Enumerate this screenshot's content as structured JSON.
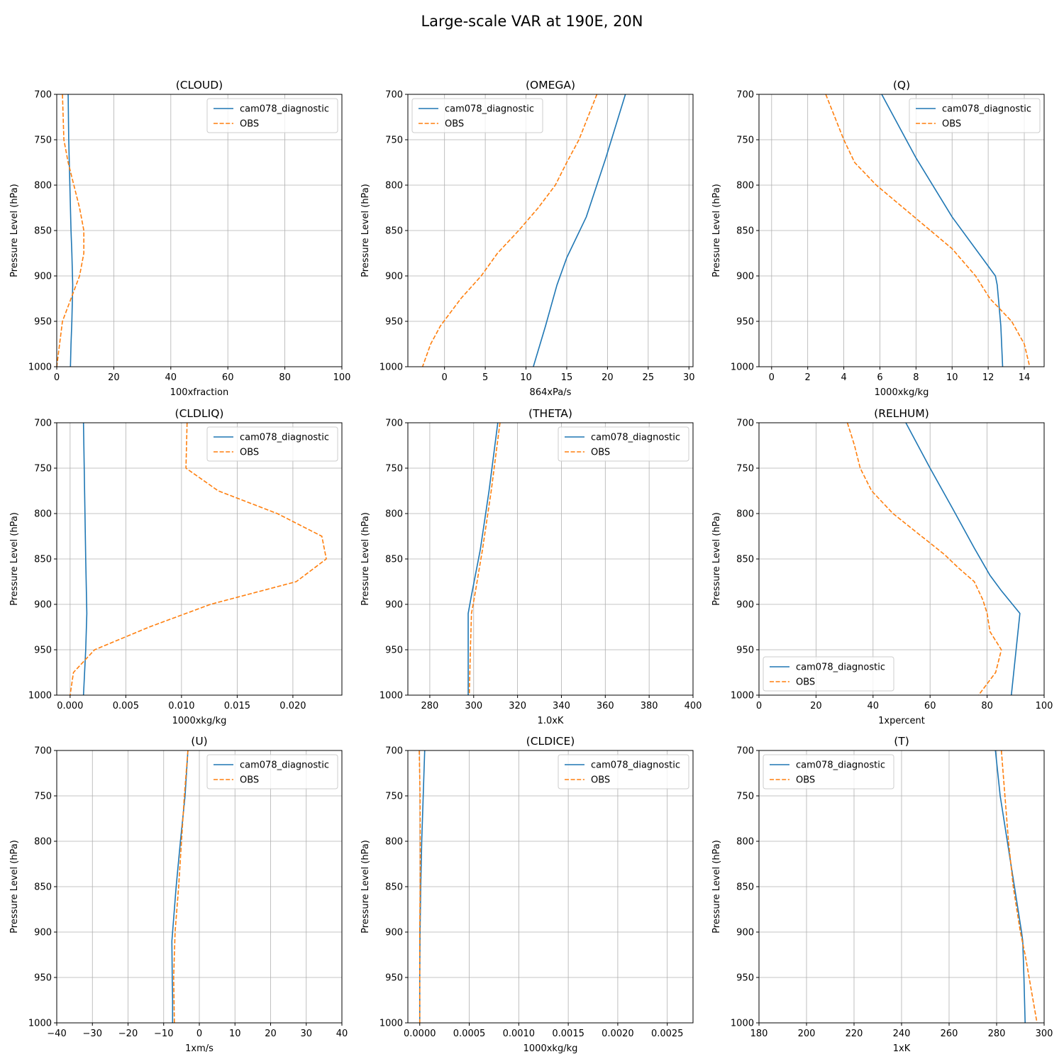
{
  "figure": {
    "title": "Large-scale VAR at 190E, 20N"
  },
  "colors": {
    "model": "#1f77b4",
    "obs": "#ff7f0e",
    "grid": "#b0b0b0"
  },
  "chart_data": [
    {
      "type": "line",
      "title": "(CLOUD)",
      "xlabel": "100xfraction",
      "ylabel": "Pressure Level (hPa)",
      "xlim": [
        0,
        100
      ],
      "ylim": [
        1000,
        700
      ],
      "xticks": [
        0,
        20,
        40,
        60,
        80,
        100
      ],
      "xtick_labels": [
        "0",
        "20",
        "40",
        "60",
        "80",
        "100"
      ],
      "yticks": [
        700,
        750,
        800,
        850,
        900,
        950,
        1000
      ],
      "ytick_labels": [
        "700",
        "750",
        "800",
        "850",
        "900",
        "950",
        "1000"
      ],
      "grid": true,
      "legend": "top-right",
      "series": [
        {
          "name": "cam078_diagnostic",
          "style": "solid",
          "x": [
            4,
            4.2,
            4.6,
            5,
            5.3,
            5.6,
            5.3,
            5,
            4.8
          ],
          "y": [
            700,
            750,
            800,
            850,
            875,
            910,
            950,
            975,
            1000
          ]
        },
        {
          "name": "OBS",
          "style": "dashed",
          "x": [
            2,
            2.5,
            4,
            8,
            9.5,
            9.5,
            8,
            5,
            2,
            1,
            0
          ],
          "y": [
            700,
            750,
            775,
            825,
            850,
            875,
            900,
            925,
            950,
            975,
            1000
          ]
        }
      ]
    },
    {
      "type": "line",
      "title": "(OMEGA)",
      "xlabel": "864xPa/s",
      "ylabel": "Pressure Level (hPa)",
      "xlim": [
        -4.5,
        30.5
      ],
      "ylim": [
        1000,
        700
      ],
      "xticks": [
        0,
        5,
        10,
        15,
        20,
        25,
        30
      ],
      "xtick_labels": [
        "0",
        "5",
        "10",
        "15",
        "20",
        "25",
        "30"
      ],
      "yticks": [
        700,
        750,
        800,
        850,
        900,
        950,
        1000
      ],
      "ytick_labels": [
        "700",
        "750",
        "800",
        "850",
        "900",
        "950",
        "1000"
      ],
      "grid": true,
      "legend": "top-left",
      "series": [
        {
          "name": "cam078_diagnostic",
          "style": "solid",
          "x": [
            22.2,
            19.8,
            17.4,
            15,
            13.8,
            12.4,
            10.9
          ],
          "y": [
            700,
            770,
            835,
            880,
            910,
            955,
            1000
          ]
        },
        {
          "name": "OBS",
          "style": "dashed",
          "x": [
            18.7,
            16.5,
            15,
            13.6,
            11.5,
            9.1,
            6.5,
            4.5,
            2,
            -0.5,
            -1.7,
            -2.7
          ],
          "y": [
            700,
            750,
            775,
            800,
            825,
            850,
            875,
            900,
            925,
            955,
            975,
            1000
          ]
        }
      ]
    },
    {
      "type": "line",
      "title": "(Q)",
      "xlabel": "1000xkg/kg",
      "ylabel": "Pressure Level (hPa)",
      "xlim": [
        -0.7,
        15.1
      ],
      "ylim": [
        1000,
        700
      ],
      "xticks": [
        0,
        2,
        4,
        6,
        8,
        10,
        12,
        14
      ],
      "xtick_labels": [
        "0",
        "2",
        "4",
        "6",
        "8",
        "10",
        "12",
        "14"
      ],
      "yticks": [
        700,
        750,
        800,
        850,
        900,
        950,
        1000
      ],
      "ytick_labels": [
        "700",
        "750",
        "800",
        "850",
        "900",
        "950",
        "1000"
      ],
      "grid": true,
      "legend": "top-right",
      "series": [
        {
          "name": "cam078_diagnostic",
          "style": "solid",
          "x": [
            6.1,
            8,
            10,
            12.4,
            12.5,
            12.7,
            12.8
          ],
          "y": [
            700,
            770,
            835,
            900,
            910,
            955,
            1000
          ]
        },
        {
          "name": "OBS",
          "style": "dashed",
          "x": [
            3,
            4,
            4.6,
            5.8,
            8.2,
            10,
            11.3,
            12.1,
            13.3,
            14,
            14.3
          ],
          "y": [
            700,
            750,
            775,
            800,
            840,
            870,
            900,
            925,
            950,
            975,
            1000
          ]
        }
      ]
    },
    {
      "type": "line",
      "title": "(CLDLIQ)",
      "xlabel": "1000xkg/kg",
      "ylabel": "Pressure Level (hPa)",
      "xlim": [
        -0.0012,
        0.0244
      ],
      "ylim": [
        1000,
        700
      ],
      "xticks": [
        0,
        0.005,
        0.01,
        0.015,
        0.02
      ],
      "xtick_labels": [
        "0.000",
        "0.005",
        "0.010",
        "0.015",
        "0.020"
      ],
      "yticks": [
        700,
        750,
        800,
        850,
        900,
        950,
        1000
      ],
      "ytick_labels": [
        "700",
        "750",
        "800",
        "850",
        "900",
        "950",
        "1000"
      ],
      "grid": true,
      "legend": "top-right",
      "series": [
        {
          "name": "cam078_diagnostic",
          "style": "solid",
          "x": [
            0.0012,
            0.0013,
            0.0014,
            0.0015,
            0.0014,
            0.0013,
            0.0012
          ],
          "y": [
            700,
            775,
            850,
            910,
            950,
            975,
            1000
          ]
        },
        {
          "name": "OBS",
          "style": "dashed",
          "x": [
            0.0105,
            0.0104,
            0.0133,
            0.0186,
            0.0226,
            0.023,
            0.0203,
            0.0126,
            0.0071,
            0.0022,
            0.0003,
            0
          ],
          "y": [
            700,
            750,
            775,
            800,
            825,
            850,
            875,
            900,
            925,
            950,
            975,
            1000
          ]
        }
      ]
    },
    {
      "type": "line",
      "title": "(THETA)",
      "xlabel": "1.0xK",
      "ylabel": "Pressure Level (hPa)",
      "xlim": [
        270,
        400
      ],
      "ylim": [
        1000,
        700
      ],
      "xticks": [
        280,
        300,
        320,
        340,
        360,
        380,
        400
      ],
      "xtick_labels": [
        "280",
        "300",
        "320",
        "340",
        "360",
        "380",
        "400"
      ],
      "yticks": [
        700,
        750,
        800,
        850,
        900,
        950,
        1000
      ],
      "ytick_labels": [
        "700",
        "750",
        "800",
        "850",
        "900",
        "950",
        "1000"
      ],
      "grid": true,
      "legend": "top-right",
      "series": [
        {
          "name": "cam078_diagnostic",
          "style": "solid",
          "x": [
            311,
            307,
            303,
            299,
            297.5,
            297.5,
            297.5
          ],
          "y": [
            700,
            775,
            840,
            890,
            910,
            950,
            1000
          ]
        },
        {
          "name": "OBS",
          "style": "dashed",
          "x": [
            312,
            308,
            304,
            300.5,
            299,
            298.5,
            298
          ],
          "y": [
            700,
            775,
            840,
            890,
            910,
            950,
            1000
          ]
        }
      ]
    },
    {
      "type": "line",
      "title": "(RELHUM)",
      "xlabel": "1xpercent",
      "ylabel": "Pressure Level (hPa)",
      "xlim": [
        0,
        100
      ],
      "ylim": [
        1000,
        700
      ],
      "xticks": [
        0,
        20,
        40,
        60,
        80,
        100
      ],
      "xtick_labels": [
        "0",
        "20",
        "40",
        "60",
        "80",
        "100"
      ],
      "yticks": [
        700,
        750,
        800,
        850,
        900,
        950,
        1000
      ],
      "ytick_labels": [
        "700",
        "750",
        "800",
        "850",
        "900",
        "950",
        "1000"
      ],
      "grid": true,
      "legend": "bottom-left",
      "series": [
        {
          "name": "cam078_diagnostic",
          "style": "solid",
          "x": [
            51.5,
            60,
            68,
            75.5,
            81,
            85,
            91.5,
            90,
            88.5
          ],
          "y": [
            700,
            750,
            795,
            838,
            868,
            885,
            910,
            955,
            1000
          ]
        },
        {
          "name": "OBS",
          "style": "dashed",
          "x": [
            31,
            33.5,
            35.5,
            39.5,
            47,
            57,
            65,
            70,
            75.5,
            78.5,
            80,
            81,
            85,
            83,
            77
          ],
          "y": [
            700,
            725,
            750,
            775,
            800,
            825,
            845,
            860,
            875,
            895,
            910,
            930,
            950,
            975,
            1000
          ]
        }
      ]
    },
    {
      "type": "line",
      "title": "(U)",
      "xlabel": "1xm/s",
      "ylabel": "Pressure Level (hPa)",
      "xlim": [
        -40,
        40
      ],
      "ylim": [
        1000,
        700
      ],
      "xticks": [
        -40,
        -30,
        -20,
        -10,
        0,
        10,
        20,
        30,
        40
      ],
      "xtick_labels": [
        "−40",
        "−30",
        "−20",
        "−10",
        "0",
        "10",
        "20",
        "30",
        "40"
      ],
      "yticks": [
        700,
        750,
        800,
        850,
        900,
        950,
        1000
      ],
      "ytick_labels": [
        "700",
        "750",
        "800",
        "850",
        "900",
        "950",
        "1000"
      ],
      "grid": true,
      "legend": "top-right",
      "series": [
        {
          "name": "cam078_diagnostic",
          "style": "solid",
          "x": [
            -3.2,
            -4,
            -5.3,
            -6.5,
            -7.7,
            -7.6,
            -7.5,
            -7.5
          ],
          "y": [
            700,
            750,
            800,
            850,
            910,
            950,
            975,
            1000
          ]
        },
        {
          "name": "OBS",
          "style": "dashed",
          "x": [
            -3.2,
            -4.2,
            -5,
            -5.8,
            -6.8,
            -7.2,
            -7.1,
            -7
          ],
          "y": [
            700,
            750,
            800,
            850,
            900,
            950,
            975,
            1000
          ]
        }
      ]
    },
    {
      "type": "line",
      "title": "(CLDICE)",
      "xlabel": "1000xkg/kg",
      "ylabel": "Pressure Level (hPa)",
      "xlim": [
        -0.00012,
        0.00276
      ],
      "ylim": [
        1000,
        700
      ],
      "xticks": [
        0,
        0.0005,
        0.001,
        0.0015,
        0.002,
        0.0025
      ],
      "xtick_labels": [
        "0.0000",
        "0.0005",
        "0.0010",
        "0.0015",
        "0.0020",
        "0.0025"
      ],
      "yticks": [
        700,
        750,
        800,
        850,
        900,
        950,
        1000
      ],
      "ytick_labels": [
        "700",
        "750",
        "800",
        "850",
        "900",
        "950",
        "1000"
      ],
      "grid": true,
      "legend": "top-right",
      "series": [
        {
          "name": "cam078_diagnostic",
          "style": "solid",
          "x": [
            5e-05,
            3.5e-05,
            2e-05,
            1e-05,
            3e-06,
            0,
            0
          ],
          "y": [
            700,
            750,
            800,
            850,
            900,
            950,
            1000
          ]
        },
        {
          "name": "OBS",
          "style": "dashed",
          "x": [
            -5e-06,
            3e-06,
            5e-06,
            5e-06,
            0,
            0,
            0
          ],
          "y": [
            700,
            750,
            800,
            850,
            900,
            950,
            1000
          ]
        }
      ]
    },
    {
      "type": "line",
      "title": "(T)",
      "xlabel": "1xK",
      "ylabel": "Pressure Level (hPa)",
      "xlim": [
        180,
        300
      ],
      "ylim": [
        1000,
        700
      ],
      "xticks": [
        180,
        200,
        220,
        240,
        260,
        280,
        300
      ],
      "xtick_labels": [
        "180",
        "200",
        "220",
        "240",
        "260",
        "280",
        "300"
      ],
      "yticks": [
        700,
        750,
        800,
        850,
        900,
        950,
        1000
      ],
      "ytick_labels": [
        "700",
        "750",
        "800",
        "850",
        "900",
        "950",
        "1000"
      ],
      "grid": true,
      "legend": "top-left",
      "series": [
        {
          "name": "cam078_diagnostic",
          "style": "solid",
          "x": [
            279.5,
            281.5,
            284.5,
            287.5,
            290.5,
            291,
            291.5,
            292
          ],
          "y": [
            700,
            750,
            800,
            850,
            900,
            910,
            950,
            1000
          ]
        },
        {
          "name": "OBS",
          "style": "dashed",
          "x": [
            282,
            283.5,
            285,
            287,
            290,
            292,
            295,
            297
          ],
          "y": [
            700,
            750,
            800,
            850,
            900,
            925,
            970,
            1000
          ]
        }
      ]
    }
  ]
}
